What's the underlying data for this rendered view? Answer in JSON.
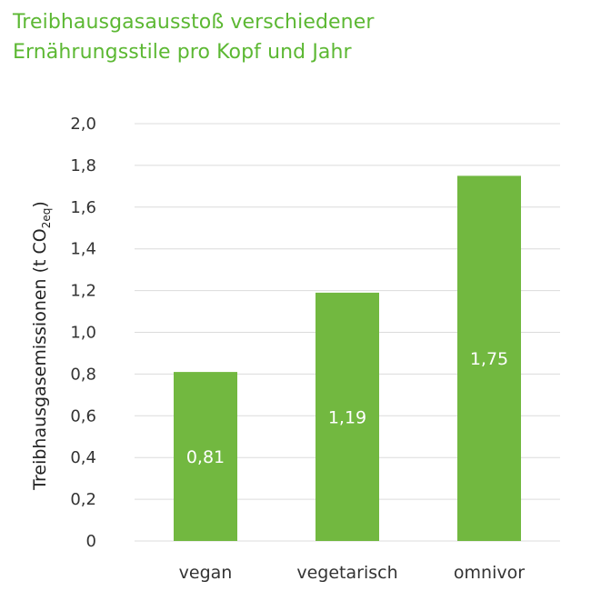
{
  "title": {
    "line1": "Treibhausgasausstoß verschiedener",
    "line2": "Ernährungsstile pro Kopf und Jahr"
  },
  "colors": {
    "title": "#5cb833",
    "bar": "#72b840",
    "grid": "#dcdcdc",
    "text": "#333333",
    "value_label": "#ffffff"
  },
  "chart_data": {
    "type": "bar",
    "categories": [
      "vegan",
      "vegetarisch",
      "omnivor"
    ],
    "values": [
      0.81,
      1.19,
      1.75
    ],
    "value_labels": [
      "0,81",
      "1,19",
      "1,75"
    ],
    "ylabel": {
      "prefix": "Treibhausgasemissionen (t CO",
      "subscript": "2eq",
      "suffix": ")"
    },
    "ylim": [
      0,
      2.0
    ],
    "yticks": [
      0,
      0.2,
      0.4,
      0.6,
      0.8,
      1.0,
      1.2,
      1.4,
      1.6,
      1.8,
      2.0
    ],
    "ytick_labels": [
      "0",
      "0,2",
      "0,4",
      "0,6",
      "0,8",
      "1,0",
      "1,2",
      "1,4",
      "1,6",
      "1,8",
      "2,0"
    ],
    "grid": true,
    "legend": "none"
  }
}
